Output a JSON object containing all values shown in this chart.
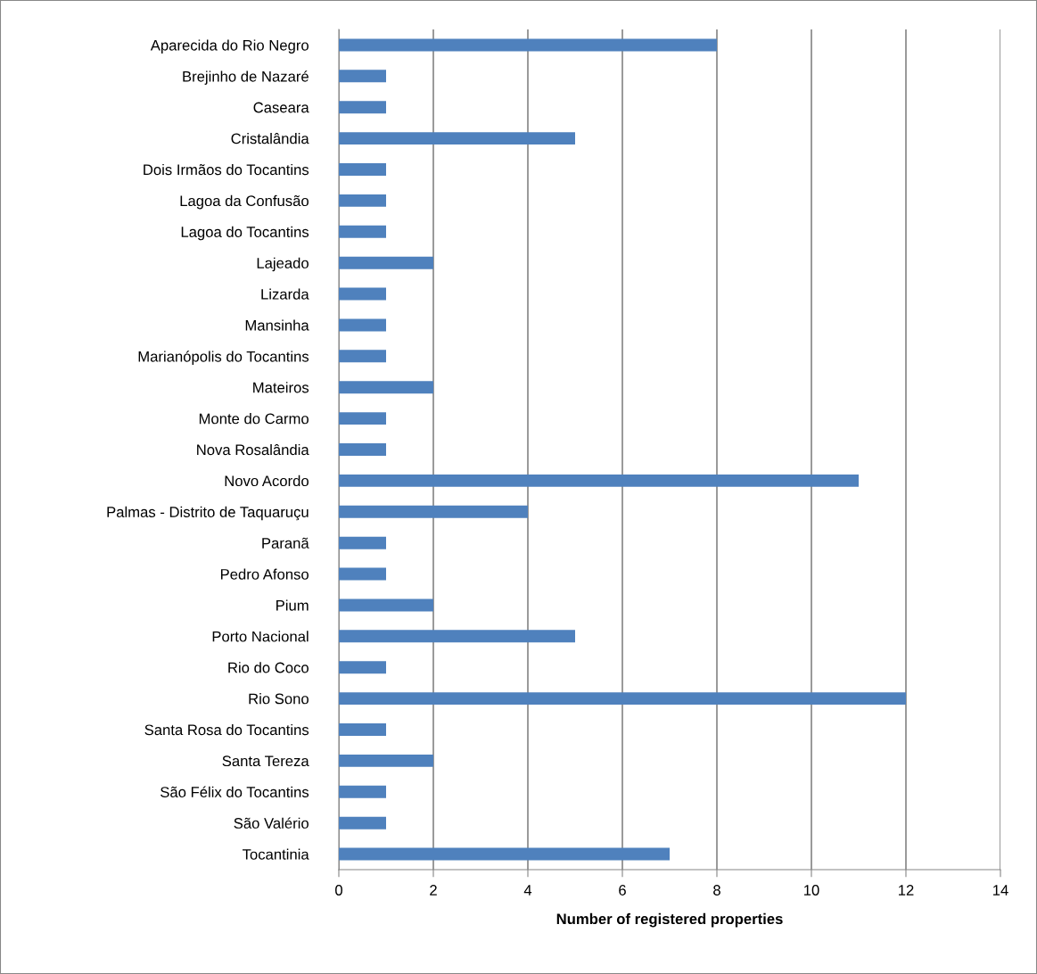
{
  "chart_data": {
    "type": "bar",
    "orientation": "horizontal",
    "xlabel": "Number of registered properties",
    "categories": [
      "Aparecida do Rio Negro",
      "Brejinho de Nazaré",
      "Caseara",
      "Cristalândia",
      "Dois Irmãos do Tocantins",
      "Lagoa da Confusão",
      "Lagoa do Tocantins",
      "Lajeado",
      "Lizarda",
      "Mansinha",
      "Marianópolis do Tocantins",
      "Mateiros",
      "Monte do Carmo",
      "Nova Rosalândia",
      "Novo Acordo",
      "Palmas - Distrito de Taquaruçu",
      "Paranã",
      "Pedro Afonso",
      "Pium",
      "Porto Nacional",
      "Rio do Coco",
      "Rio Sono",
      "Santa Rosa do Tocantins",
      "Santa Tereza",
      "São Félix do Tocantins",
      "São Valério",
      "Tocantinia"
    ],
    "values": [
      8,
      1,
      1,
      5,
      1,
      1,
      1,
      2,
      1,
      1,
      1,
      2,
      1,
      1,
      11,
      4,
      1,
      1,
      2,
      5,
      1,
      12,
      1,
      2,
      1,
      1,
      7
    ],
    "color": "#4f81bd",
    "xlim": [
      0,
      14
    ],
    "xticks": [
      0,
      2,
      4,
      6,
      8,
      10,
      12,
      14
    ],
    "grid": "x",
    "legend": false
  }
}
